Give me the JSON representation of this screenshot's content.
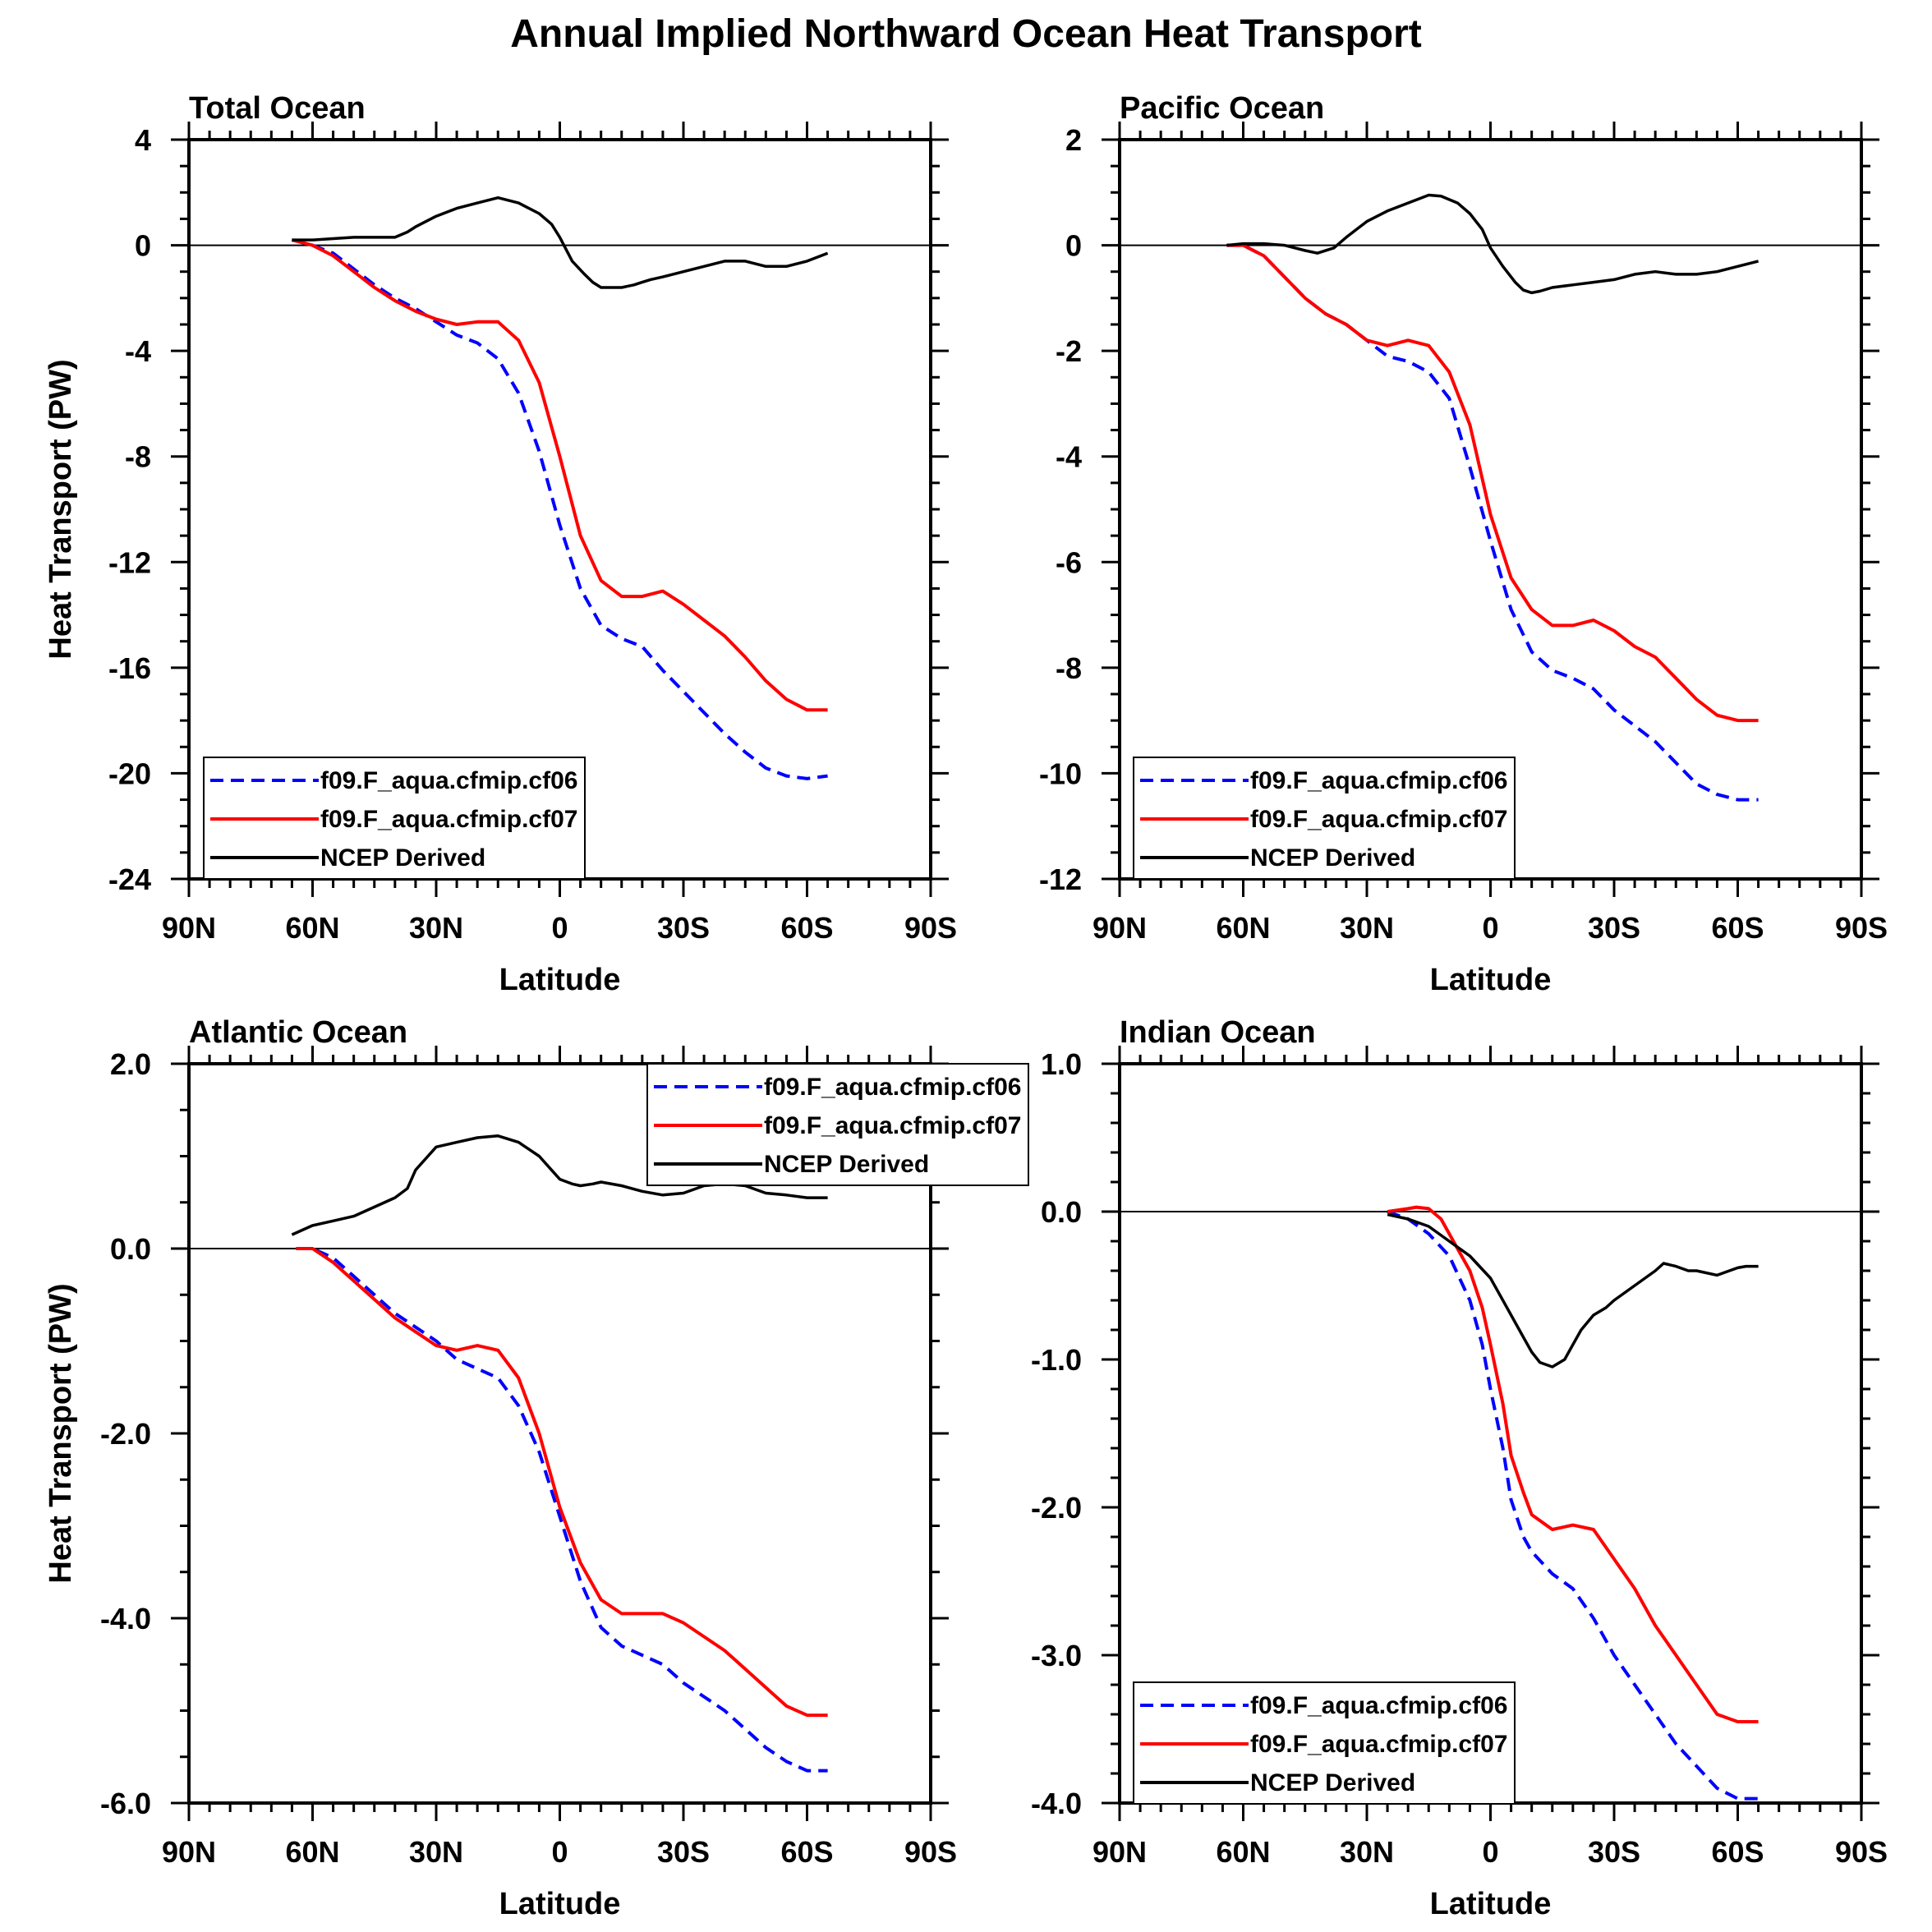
{
  "title": "Annual Implied Northward Ocean Heat Transport",
  "legend_labels": [
    "f09.F_aqua.cfmip.cf06",
    "f09.F_aqua.cfmip.cf07",
    "NCEP Derived"
  ],
  "series_colors": [
    "#0000ff",
    "#ff0000",
    "#000000"
  ],
  "chart_data": [
    {
      "type": "line",
      "title": "Total Ocean",
      "xlabel": "Latitude",
      "ylabel": "Heat Transport (PW)",
      "xlim": [
        90,
        -90
      ],
      "ylim": [
        -24,
        4
      ],
      "x_ticks": [
        90,
        60,
        30,
        0,
        -30,
        -60,
        -90
      ],
      "x_tick_labels": [
        "90N",
        "60N",
        "30N",
        "0",
        "30S",
        "60S",
        "90S"
      ],
      "y_ticks": [
        4,
        0,
        -4,
        -8,
        -12,
        -16,
        -20,
        -24
      ],
      "y_tick_labels": [
        "4",
        "0",
        "-4",
        "-8",
        "-12",
        "-16",
        "-20",
        "-24"
      ],
      "legend_position": "bottom-left",
      "series": [
        {
          "name": "f09.F_aqua.cfmip.cf06",
          "style": "dashed",
          "x": [
            65,
            60,
            55,
            50,
            45,
            40,
            35,
            30,
            25,
            20,
            15,
            10,
            5,
            0,
            -5,
            -10,
            -15,
            -20,
            -25,
            -30,
            -35,
            -40,
            -45,
            -50,
            -55,
            -60,
            -65
          ],
          "y": [
            0.2,
            0.0,
            -0.3,
            -0.9,
            -1.5,
            -2.0,
            -2.4,
            -2.9,
            -3.4,
            -3.7,
            -4.3,
            -5.6,
            -7.8,
            -10.6,
            -13.0,
            -14.4,
            -14.9,
            -15.2,
            -16.1,
            -16.9,
            -17.7,
            -18.5,
            -19.2,
            -19.8,
            -20.1,
            -20.2,
            -20.1
          ]
        },
        {
          "name": "f09.F_aqua.cfmip.cf07",
          "style": "solid",
          "x": [
            65,
            60,
            55,
            50,
            45,
            40,
            35,
            30,
            25,
            20,
            15,
            10,
            5,
            0,
            -5,
            -10,
            -15,
            -20,
            -25,
            -30,
            -35,
            -40,
            -45,
            -50,
            -55,
            -60,
            -65
          ],
          "y": [
            0.2,
            0.0,
            -0.4,
            -1.0,
            -1.6,
            -2.1,
            -2.5,
            -2.8,
            -3.0,
            -2.9,
            -2.9,
            -3.6,
            -5.2,
            -8.0,
            -11.0,
            -12.7,
            -13.3,
            -13.3,
            -13.1,
            -13.6,
            -14.2,
            -14.8,
            -15.6,
            -16.5,
            -17.2,
            -17.6,
            -17.6
          ]
        },
        {
          "name": "NCEP Derived",
          "style": "solid",
          "x": [
            65,
            60,
            55,
            50,
            45,
            40,
            37,
            35,
            30,
            25,
            20,
            15,
            10,
            5,
            2,
            0,
            -3,
            -6,
            -8,
            -10,
            -12,
            -15,
            -18,
            -20,
            -22,
            -25,
            -30,
            -35,
            -40,
            -45,
            -50,
            -55,
            -60,
            -65
          ],
          "y": [
            0.2,
            0.2,
            0.25,
            0.3,
            0.3,
            0.3,
            0.5,
            0.7,
            1.1,
            1.4,
            1.6,
            1.8,
            1.6,
            1.2,
            0.8,
            0.3,
            -0.6,
            -1.1,
            -1.4,
            -1.6,
            -1.6,
            -1.6,
            -1.5,
            -1.4,
            -1.3,
            -1.2,
            -1.0,
            -0.8,
            -0.6,
            -0.6,
            -0.8,
            -0.8,
            -0.6,
            -0.3
          ]
        }
      ]
    },
    {
      "type": "line",
      "title": "Pacific Ocean",
      "xlabel": "Latitude",
      "ylabel": "",
      "xlim": [
        90,
        -90
      ],
      "ylim": [
        -12,
        2
      ],
      "x_ticks": [
        90,
        60,
        30,
        0,
        -30,
        -60,
        -90
      ],
      "x_tick_labels": [
        "90N",
        "60N",
        "30N",
        "0",
        "30S",
        "60S",
        "90S"
      ],
      "y_ticks": [
        2,
        0,
        -2,
        -4,
        -6,
        -8,
        -10,
        -12
      ],
      "y_tick_labels": [
        "2",
        "0",
        "-2",
        "-4",
        "-6",
        "-8",
        "-10",
        "-12"
      ],
      "legend_position": "bottom-left",
      "series": [
        {
          "name": "f09.F_aqua.cfmip.cf06",
          "style": "dashed",
          "x": [
            64,
            60,
            55,
            50,
            45,
            40,
            35,
            30,
            25,
            20,
            15,
            10,
            5,
            0,
            -5,
            -10,
            -15,
            -20,
            -25,
            -30,
            -35,
            -40,
            -45,
            -50,
            -55,
            -60,
            -65
          ],
          "y": [
            0.0,
            0.0,
            -0.2,
            -0.6,
            -1.0,
            -1.3,
            -1.5,
            -1.8,
            -2.1,
            -2.2,
            -2.4,
            -2.9,
            -4.2,
            -5.6,
            -6.9,
            -7.7,
            -8.05,
            -8.2,
            -8.4,
            -8.8,
            -9.1,
            -9.4,
            -9.8,
            -10.2,
            -10.4,
            -10.5,
            -10.5
          ]
        },
        {
          "name": "f09.F_aqua.cfmip.cf07",
          "style": "solid",
          "x": [
            64,
            60,
            55,
            50,
            45,
            40,
            35,
            30,
            25,
            20,
            15,
            10,
            5,
            0,
            -5,
            -10,
            -15,
            -20,
            -25,
            -30,
            -35,
            -40,
            -45,
            -50,
            -55,
            -60,
            -65
          ],
          "y": [
            0.0,
            0.0,
            -0.2,
            -0.6,
            -1.0,
            -1.3,
            -1.5,
            -1.8,
            -1.9,
            -1.8,
            -1.9,
            -2.4,
            -3.4,
            -5.1,
            -6.3,
            -6.9,
            -7.2,
            -7.2,
            -7.1,
            -7.3,
            -7.6,
            -7.8,
            -8.2,
            -8.6,
            -8.9,
            -9.0,
            -9.0
          ]
        },
        {
          "name": "NCEP Derived",
          "style": "solid",
          "x": [
            64,
            60,
            55,
            50,
            45,
            42,
            38,
            35,
            30,
            25,
            20,
            15,
            12,
            8,
            5,
            2,
            0,
            -3,
            -6,
            -8,
            -10,
            -12,
            -15,
            -20,
            -25,
            -30,
            -35,
            -40,
            -45,
            -50,
            -55,
            -60,
            -65
          ],
          "y": [
            0.0,
            0.03,
            0.03,
            0.0,
            -0.1,
            -0.15,
            -0.05,
            0.15,
            0.45,
            0.65,
            0.8,
            0.95,
            0.93,
            0.8,
            0.6,
            0.3,
            -0.05,
            -0.4,
            -0.7,
            -0.85,
            -0.9,
            -0.87,
            -0.8,
            -0.75,
            -0.7,
            -0.65,
            -0.55,
            -0.5,
            -0.55,
            -0.55,
            -0.5,
            -0.4,
            -0.3
          ]
        }
      ]
    },
    {
      "type": "line",
      "title": "Atlantic Ocean",
      "xlabel": "Latitude",
      "ylabel": "Heat Transport (PW)",
      "xlim": [
        90,
        -90
      ],
      "ylim": [
        -6,
        2
      ],
      "x_ticks": [
        90,
        60,
        30,
        0,
        -30,
        -60,
        -90
      ],
      "x_tick_labels": [
        "90N",
        "60N",
        "30N",
        "0",
        "30S",
        "60S",
        "90S"
      ],
      "y_ticks": [
        2,
        0,
        -2,
        -4,
        -6
      ],
      "y_tick_labels": [
        "2.0",
        "0.0",
        "-2.0",
        "-4.0",
        "-6.0"
      ],
      "legend_position": "top-right",
      "series": [
        {
          "name": "f09.F_aqua.cfmip.cf06",
          "style": "dashed",
          "x": [
            64,
            60,
            55,
            50,
            45,
            40,
            35,
            30,
            25,
            20,
            15,
            10,
            5,
            0,
            -5,
            -10,
            -15,
            -20,
            -25,
            -30,
            -35,
            -40,
            -45,
            -50,
            -55,
            -60,
            -65
          ],
          "y": [
            0.0,
            0.0,
            -0.1,
            -0.3,
            -0.5,
            -0.7,
            -0.85,
            -1.0,
            -1.2,
            -1.3,
            -1.4,
            -1.7,
            -2.2,
            -2.9,
            -3.6,
            -4.1,
            -4.3,
            -4.4,
            -4.5,
            -4.7,
            -4.85,
            -5.0,
            -5.2,
            -5.4,
            -5.55,
            -5.65,
            -5.65
          ]
        },
        {
          "name": "f09.F_aqua.cfmip.cf07",
          "style": "solid",
          "x": [
            64,
            60,
            55,
            50,
            45,
            40,
            35,
            30,
            25,
            20,
            15,
            10,
            5,
            0,
            -5,
            -10,
            -15,
            -20,
            -25,
            -30,
            -35,
            -40,
            -45,
            -50,
            -55,
            -60,
            -65
          ],
          "y": [
            0.0,
            0.0,
            -0.15,
            -0.35,
            -0.55,
            -0.75,
            -0.9,
            -1.05,
            -1.1,
            -1.05,
            -1.1,
            -1.4,
            -2.0,
            -2.8,
            -3.4,
            -3.8,
            -3.95,
            -3.95,
            -3.95,
            -4.05,
            -4.2,
            -4.35,
            -4.55,
            -4.75,
            -4.95,
            -5.05,
            -5.05
          ]
        },
        {
          "name": "NCEP Derived",
          "style": "solid",
          "x": [
            65,
            60,
            55,
            50,
            45,
            40,
            37,
            35,
            32,
            30,
            25,
            20,
            15,
            10,
            5,
            2,
            0,
            -3,
            -5,
            -8,
            -10,
            -15,
            -20,
            -25,
            -30,
            -35,
            -40,
            -45,
            -50,
            -55,
            -60,
            -65
          ],
          "y": [
            0.15,
            0.25,
            0.3,
            0.35,
            0.45,
            0.55,
            0.65,
            0.85,
            1.0,
            1.1,
            1.15,
            1.2,
            1.22,
            1.15,
            1.0,
            0.85,
            0.75,
            0.7,
            0.68,
            0.7,
            0.72,
            0.68,
            0.62,
            0.58,
            0.6,
            0.68,
            0.7,
            0.68,
            0.6,
            0.58,
            0.55,
            0.55
          ]
        }
      ]
    },
    {
      "type": "line",
      "title": "Indian Ocean",
      "xlabel": "Latitude",
      "ylabel": "",
      "xlim": [
        90,
        -90
      ],
      "ylim": [
        -4,
        1
      ],
      "x_ticks": [
        90,
        60,
        30,
        0,
        -30,
        -60,
        -90
      ],
      "x_tick_labels": [
        "90N",
        "60N",
        "30N",
        "0",
        "30S",
        "60S",
        "90S"
      ],
      "y_ticks": [
        1,
        0,
        -1,
        -2,
        -3,
        -4
      ],
      "y_tick_labels": [
        "1.0",
        "0.0",
        "-1.0",
        "-2.0",
        "-3.0",
        "-4.0"
      ],
      "legend_position": "bottom-left",
      "series": [
        {
          "name": "f09.F_aqua.cfmip.cf06",
          "style": "dashed",
          "x": [
            25,
            20,
            15,
            10,
            5,
            2,
            0,
            -3,
            -5,
            -8,
            -10,
            -15,
            -20,
            -25,
            -30,
            -35,
            -40,
            -45,
            -50,
            -55,
            -60,
            -65
          ],
          "y": [
            0.0,
            -0.05,
            -0.15,
            -0.3,
            -0.6,
            -0.9,
            -1.2,
            -1.6,
            -1.95,
            -2.2,
            -2.3,
            -2.45,
            -2.55,
            -2.75,
            -3.0,
            -3.2,
            -3.4,
            -3.6,
            -3.75,
            -3.9,
            -3.97,
            -3.97
          ]
        },
        {
          "name": "f09.F_aqua.cfmip.cf07",
          "style": "solid",
          "x": [
            25,
            20,
            18,
            15,
            12,
            10,
            5,
            2,
            0,
            -3,
            -5,
            -8,
            -10,
            -15,
            -20,
            -25,
            -30,
            -35,
            -40,
            -45,
            -50,
            -55,
            -60,
            -65
          ],
          "y": [
            0.0,
            0.02,
            0.03,
            0.02,
            -0.05,
            -0.15,
            -0.4,
            -0.65,
            -0.9,
            -1.3,
            -1.65,
            -1.9,
            -2.05,
            -2.15,
            -2.12,
            -2.15,
            -2.35,
            -2.55,
            -2.8,
            -3.0,
            -3.2,
            -3.4,
            -3.45,
            -3.45
          ]
        },
        {
          "name": "NCEP Derived",
          "style": "solid",
          "x": [
            25,
            20,
            15,
            10,
            5,
            0,
            -3,
            -5,
            -8,
            -10,
            -12,
            -15,
            -18,
            -20,
            -22,
            -25,
            -28,
            -30,
            -35,
            -40,
            -42,
            -45,
            -48,
            -50,
            -55,
            -60,
            -62,
            -65
          ],
          "y": [
            -0.02,
            -0.05,
            -0.1,
            -0.2,
            -0.3,
            -0.45,
            -0.6,
            -0.7,
            -0.85,
            -0.95,
            -1.02,
            -1.05,
            -1.0,
            -0.9,
            -0.8,
            -0.7,
            -0.65,
            -0.6,
            -0.5,
            -0.4,
            -0.35,
            -0.37,
            -0.4,
            -0.4,
            -0.43,
            -0.38,
            -0.37,
            -0.37
          ]
        }
      ]
    }
  ]
}
